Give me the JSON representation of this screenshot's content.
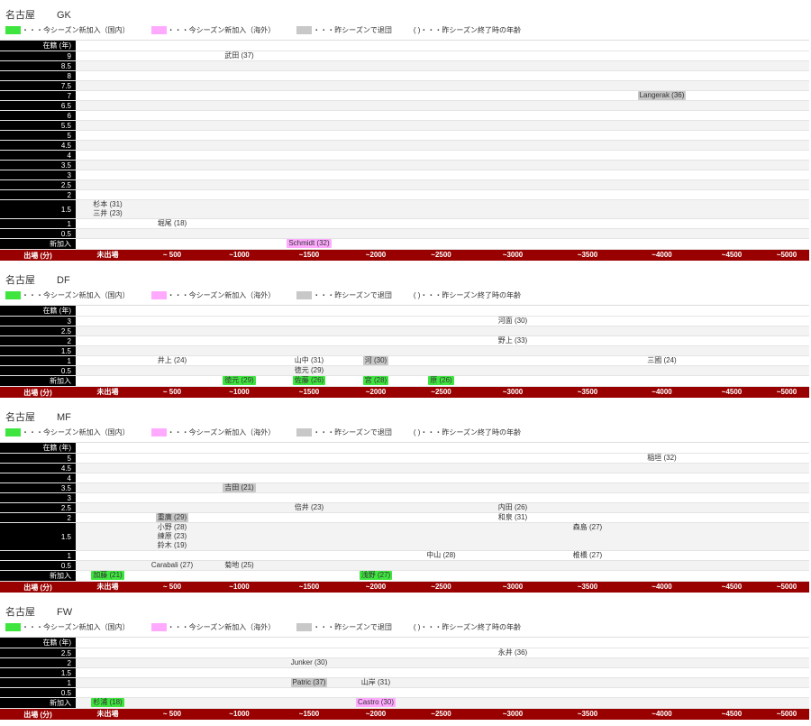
{
  "colors": {
    "green": "#3fe53f",
    "pink": "#ffaaff",
    "gray": "#c8c8c8",
    "axis_bg": "#990000",
    "axis_text": "#ffffff",
    "label_bg": "#000000",
    "row_alt": "#f3f3f3"
  },
  "legend": [
    {
      "swatch": "green",
      "label": "・・・今シーズン新加入（国内）"
    },
    {
      "swatch": "pink",
      "label": "・・・今シーズン新加入（海外）"
    },
    {
      "swatch": "gray",
      "label": "・・・昨シーズンで退団"
    },
    {
      "swatch": "",
      "label": "( )・・・昨シーズン終了時の年齢"
    }
  ],
  "chart_data": {
    "type": "table",
    "row_axis_title": "在籍 (年)",
    "col_axis_title": "出場 (分)",
    "col_labels": [
      "未出場",
      "~ 500",
      "~1000",
      "~1500",
      "~2000",
      "~2500",
      "~3000",
      "~3500",
      "~4000",
      "~4500",
      "~5000"
    ],
    "newcomer_row_label": "新加入",
    "sections": [
      {
        "team": "名古屋",
        "position": "GK",
        "rows": [
          {
            "label": "9",
            "lines": [
              [
                {
                  "c": 2,
                  "t": "武田 (37)"
                }
              ]
            ]
          },
          {
            "label": "8.5",
            "lines": [
              []
            ]
          },
          {
            "label": "8",
            "lines": [
              []
            ]
          },
          {
            "label": "7.5",
            "lines": [
              []
            ]
          },
          {
            "label": "7",
            "lines": [
              [
                {
                  "c": 8,
                  "t": "Langerak (36)",
                  "h": "gray"
                }
              ]
            ]
          },
          {
            "label": "6.5",
            "lines": [
              []
            ]
          },
          {
            "label": "6",
            "lines": [
              []
            ]
          },
          {
            "label": "5.5",
            "lines": [
              []
            ]
          },
          {
            "label": "5",
            "lines": [
              []
            ]
          },
          {
            "label": "4.5",
            "lines": [
              []
            ]
          },
          {
            "label": "4",
            "lines": [
              []
            ]
          },
          {
            "label": "3.5",
            "lines": [
              []
            ]
          },
          {
            "label": "3",
            "lines": [
              []
            ]
          },
          {
            "label": "2.5",
            "lines": [
              []
            ]
          },
          {
            "label": "2",
            "lines": [
              []
            ]
          },
          {
            "label": "1.5",
            "lines": [
              [
                {
                  "c": 0,
                  "t": "杉本 (31)"
                }
              ],
              [
                {
                  "c": 0,
                  "t": "三井 (23)"
                }
              ]
            ]
          },
          {
            "label": "1",
            "lines": [
              [
                {
                  "c": 1,
                  "t": "堀尾 (18)"
                }
              ]
            ]
          },
          {
            "label": "0.5",
            "lines": [
              []
            ]
          },
          {
            "label": "新加入",
            "lines": [
              [
                {
                  "c": 3,
                  "t": "Schmidt (32)",
                  "h": "pink"
                }
              ]
            ]
          }
        ]
      },
      {
        "team": "名古屋",
        "position": "DF",
        "rows": [
          {
            "label": "3",
            "lines": [
              [
                {
                  "c": 6,
                  "t": "河面 (30)"
                }
              ]
            ]
          },
          {
            "label": "2.5",
            "lines": [
              []
            ]
          },
          {
            "label": "2",
            "lines": [
              [
                {
                  "c": 6,
                  "t": "野上 (33)"
                }
              ]
            ]
          },
          {
            "label": "1.5",
            "lines": [
              []
            ]
          },
          {
            "label": "1",
            "lines": [
              [
                {
                  "c": 1,
                  "t": "井上 (24)"
                },
                {
                  "c": 3,
                  "t": "山中 (31)"
                },
                {
                  "c": 4,
                  "t": "河 (30)",
                  "h": "gray"
                },
                {
                  "c": 8,
                  "t": "三國 (24)"
                }
              ]
            ]
          },
          {
            "label": "0.5",
            "lines": [
              [
                {
                  "c": 3,
                  "t": "徳元 (29)"
                }
              ]
            ]
          },
          {
            "label": "新加入",
            "lines": [
              [
                {
                  "c": 2,
                  "t": "徳元 (29)",
                  "h": "green"
                },
                {
                  "c": 3,
                  "t": "佐藤 (26)",
                  "h": "green"
                },
                {
                  "c": 4,
                  "t": "宮 (28)",
                  "h": "green"
                },
                {
                  "c": 5,
                  "t": "原 (26)",
                  "h": "green"
                }
              ]
            ]
          }
        ]
      },
      {
        "team": "名古屋",
        "position": "MF",
        "rows": [
          {
            "label": "5",
            "lines": [
              [
                {
                  "c": 8,
                  "t": "稲垣 (32)"
                }
              ]
            ]
          },
          {
            "label": "4.5",
            "lines": [
              []
            ]
          },
          {
            "label": "4",
            "lines": [
              []
            ]
          },
          {
            "label": "3.5",
            "lines": [
              [
                {
                  "c": 2,
                  "t": "吉田 (21)",
                  "h": "gray"
                }
              ]
            ]
          },
          {
            "label": "3",
            "lines": [
              []
            ]
          },
          {
            "label": "2.5",
            "lines": [
              [
                {
                  "c": 3,
                  "t": "倍井 (23)"
                },
                {
                  "c": 6,
                  "t": "内田 (26)"
                }
              ]
            ]
          },
          {
            "label": "2",
            "lines": [
              [
                {
                  "c": 1,
                  "t": "重廣 (29)",
                  "h": "gray"
                },
                {
                  "c": 6,
                  "t": "和泉 (31)"
                }
              ]
            ]
          },
          {
            "label": "1.5",
            "lines": [
              [
                {
                  "c": 1,
                  "t": "小野 (28)"
                },
                {
                  "c": 7,
                  "t": "森島 (27)"
                }
              ],
              [
                {
                  "c": 1,
                  "t": "練原 (23)"
                }
              ],
              [
                {
                  "c": 1,
                  "t": "鈴木 (19)"
                }
              ]
            ]
          },
          {
            "label": "1",
            "lines": [
              [
                {
                  "c": 5,
                  "t": "中山 (28)"
                },
                {
                  "c": 7,
                  "t": "椎橋 (27)"
                }
              ]
            ]
          },
          {
            "label": "0.5",
            "lines": [
              [
                {
                  "c": 1,
                  "t": "Carabali (27)"
                },
                {
                  "c": 2,
                  "t": "菊地 (25)"
                }
              ]
            ]
          },
          {
            "label": "新加入",
            "lines": [
              [
                {
                  "c": 0,
                  "t": "加藤 (21)",
                  "h": "green"
                },
                {
                  "c": 4,
                  "t": "浅野 (27)",
                  "h": "green"
                }
              ]
            ]
          }
        ]
      },
      {
        "team": "名古屋",
        "position": "FW",
        "rows": [
          {
            "label": "2.5",
            "lines": [
              [
                {
                  "c": 6,
                  "t": "永井 (36)"
                }
              ]
            ]
          },
          {
            "label": "2",
            "lines": [
              [
                {
                  "c": 3,
                  "t": "Junker (30)"
                }
              ]
            ]
          },
          {
            "label": "1.5",
            "lines": [
              []
            ]
          },
          {
            "label": "1",
            "lines": [
              [
                {
                  "c": 3,
                  "t": "Patric (37)",
                  "h": "gray"
                },
                {
                  "c": 4,
                  "t": "山岸 (31)"
                }
              ]
            ]
          },
          {
            "label": "0.5",
            "lines": [
              []
            ]
          },
          {
            "label": "新加入",
            "lines": [
              [
                {
                  "c": 0,
                  "t": "杉浦 (18)",
                  "h": "green"
                },
                {
                  "c": 4,
                  "t": "Castro (30)",
                  "h": "pink"
                }
              ]
            ]
          }
        ]
      }
    ]
  }
}
